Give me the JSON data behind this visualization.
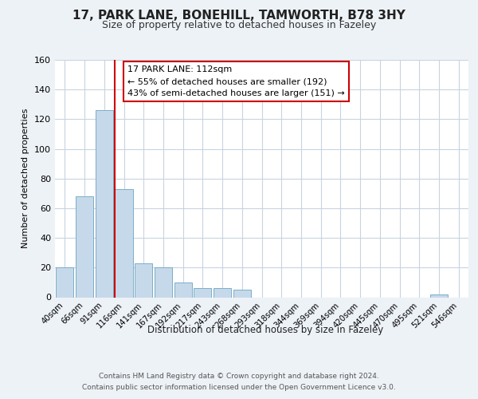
{
  "title": "17, PARK LANE, BONEHILL, TAMWORTH, B78 3HY",
  "subtitle": "Size of property relative to detached houses in Fazeley",
  "xlabel": "Distribution of detached houses by size in Fazeley",
  "ylabel": "Number of detached properties",
  "bin_labels": [
    "40sqm",
    "66sqm",
    "91sqm",
    "116sqm",
    "141sqm",
    "167sqm",
    "192sqm",
    "217sqm",
    "243sqm",
    "268sqm",
    "293sqm",
    "318sqm",
    "344sqm",
    "369sqm",
    "394sqm",
    "420sqm",
    "445sqm",
    "470sqm",
    "495sqm",
    "521sqm",
    "546sqm"
  ],
  "bar_values": [
    20,
    68,
    126,
    73,
    23,
    20,
    10,
    6,
    6,
    5,
    0,
    0,
    0,
    0,
    0,
    0,
    0,
    0,
    0,
    2,
    0
  ],
  "bar_color": "#c6d9ea",
  "bar_edge_color": "#7aaec8",
  "vline_color": "#cc0000",
  "annotation_text": "17 PARK LANE: 112sqm\n← 55% of detached houses are smaller (192)\n43% of semi-detached houses are larger (151) →",
  "annotation_box_color": "#ffffff",
  "annotation_box_edge": "#cc0000",
  "ylim": [
    0,
    160
  ],
  "yticks": [
    0,
    20,
    40,
    60,
    80,
    100,
    120,
    140,
    160
  ],
  "footer_text": "Contains HM Land Registry data © Crown copyright and database right 2024.\nContains public sector information licensed under the Open Government Licence v3.0.",
  "bg_color": "#edf2f7",
  "plot_bg_color": "#ffffff",
  "grid_color": "#c8d4e0"
}
